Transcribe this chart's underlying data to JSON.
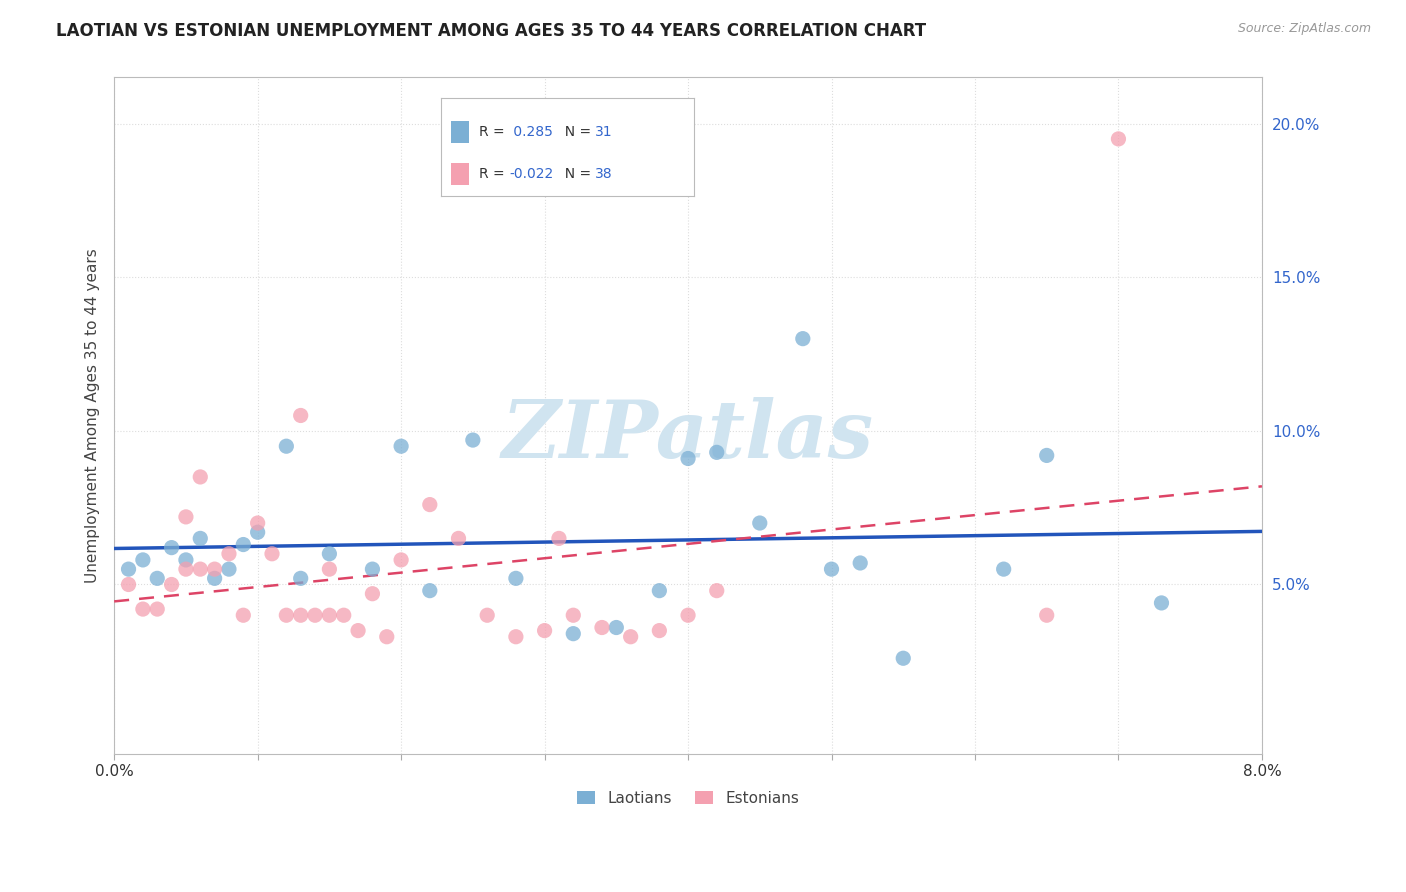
{
  "title": "LAOTIAN VS ESTONIAN UNEMPLOYMENT AMONG AGES 35 TO 44 YEARS CORRELATION CHART",
  "source": "Source: ZipAtlas.com",
  "ylabel": "Unemployment Among Ages 35 to 44 years",
  "xlim": [
    0.0,
    0.08
  ],
  "ylim": [
    -0.005,
    0.215
  ],
  "plot_ylim": [
    0.0,
    0.21
  ],
  "xticks": [
    0.0,
    0.01,
    0.02,
    0.03,
    0.04,
    0.05,
    0.06,
    0.07,
    0.08
  ],
  "xtick_labels": [
    "0.0%",
    "",
    "",
    "",
    "",
    "",
    "",
    "",
    "8.0%"
  ],
  "yticks_right": [
    0.05,
    0.1,
    0.15,
    0.2
  ],
  "ytick_labels_right": [
    "5.0%",
    "10.0%",
    "15.0%",
    "20.0%"
  ],
  "laotian_color": "#7BAFD4",
  "estonian_color": "#F4A0B0",
  "laotian_R": 0.285,
  "laotian_N": 31,
  "estonian_R": -0.022,
  "estonian_N": 38,
  "watermark": "ZIPatlas",
  "watermark_color": "#D0E4F0",
  "background_color": "#FFFFFF",
  "grid_color": "#DDDDDD",
  "laotian_x": [
    0.001,
    0.002,
    0.003,
    0.004,
    0.005,
    0.006,
    0.007,
    0.008,
    0.009,
    0.01,
    0.012,
    0.013,
    0.015,
    0.018,
    0.02,
    0.022,
    0.025,
    0.028,
    0.032,
    0.035,
    0.038,
    0.04,
    0.042,
    0.045,
    0.048,
    0.05,
    0.052,
    0.055,
    0.062,
    0.065,
    0.073
  ],
  "laotian_y": [
    0.055,
    0.058,
    0.052,
    0.062,
    0.058,
    0.065,
    0.052,
    0.055,
    0.063,
    0.067,
    0.095,
    0.052,
    0.06,
    0.055,
    0.095,
    0.048,
    0.097,
    0.052,
    0.034,
    0.036,
    0.048,
    0.091,
    0.093,
    0.07,
    0.13,
    0.055,
    0.057,
    0.026,
    0.055,
    0.092,
    0.044
  ],
  "estonian_x": [
    0.001,
    0.002,
    0.003,
    0.004,
    0.005,
    0.005,
    0.006,
    0.006,
    0.007,
    0.008,
    0.009,
    0.01,
    0.011,
    0.012,
    0.013,
    0.013,
    0.014,
    0.015,
    0.015,
    0.016,
    0.017,
    0.018,
    0.019,
    0.02,
    0.022,
    0.024,
    0.026,
    0.028,
    0.03,
    0.031,
    0.032,
    0.034,
    0.036,
    0.038,
    0.04,
    0.042,
    0.065,
    0.07
  ],
  "estonian_y": [
    0.05,
    0.042,
    0.042,
    0.05,
    0.055,
    0.072,
    0.055,
    0.085,
    0.055,
    0.06,
    0.04,
    0.07,
    0.06,
    0.04,
    0.04,
    0.105,
    0.04,
    0.04,
    0.055,
    0.04,
    0.035,
    0.047,
    0.033,
    0.058,
    0.076,
    0.065,
    0.04,
    0.033,
    0.035,
    0.065,
    0.04,
    0.036,
    0.033,
    0.035,
    0.04,
    0.048,
    0.04,
    0.195
  ],
  "trendline_blue_color": "#2255BB",
  "trendline_pink_color": "#DD4466",
  "legend_R1_label": "R =  0.285",
  "legend_N1_label": "N = 31",
  "legend_R2_label": "R = -0.022",
  "legend_N2_label": "N = 38"
}
